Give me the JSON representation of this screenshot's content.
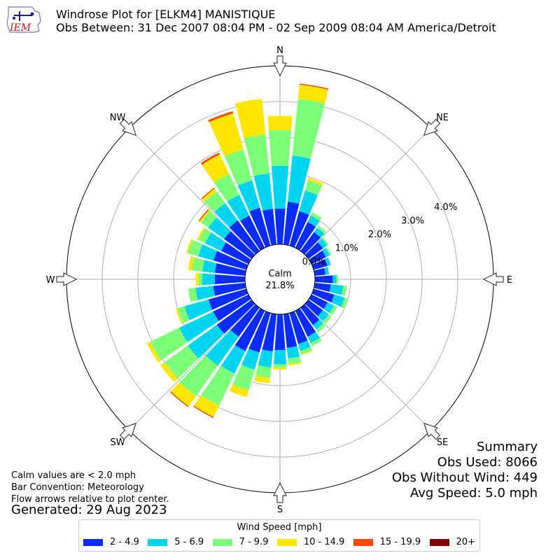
{
  "logo": {
    "text": "IEM"
  },
  "title": "Windrose Plot for [ELKM4] MANISTIQUE",
  "subtitle": "Obs Between: 31 Dec 2007 08:04 PM - 02 Sep 2009 08:04 AM America/Detroit",
  "notes": {
    "calm": "Calm values are < 2.0 mph",
    "bar": "Bar Convention: Meteorology",
    "flow": "Flow arrows relative to plot center.",
    "generated": "Generated: 29 Aug 2023"
  },
  "summary": {
    "title": "Summary",
    "obs_used": "Obs Used: 8066",
    "obs_without_wind": "Obs Without Wind: 449",
    "avg_speed": "Avg Speed: 5.0 mph"
  },
  "legend": {
    "title": "Wind Speed [mph]",
    "items": [
      {
        "label": "2 - 4.9",
        "color": "#0a2cf5"
      },
      {
        "label": "5 - 6.9",
        "color": "#00d5f0"
      },
      {
        "label": "7 - 9.9",
        "color": "#7dff7a"
      },
      {
        "label": "10 - 14.9",
        "color": "#ffe600"
      },
      {
        "label": "15 - 19.9",
        "color": "#ff4a0a"
      },
      {
        "label": "20+",
        "color": "#800000"
      }
    ]
  },
  "chart_data": {
    "type": "windrose",
    "calm_label": "Calm",
    "calm_value": "21.8%",
    "radial_ticks": [
      0,
      1,
      2,
      3,
      4
    ],
    "radial_tick_labels": [
      "0.0%",
      "1.0%",
      "2.0%",
      "3.0%",
      "4.0%"
    ],
    "directions": [
      "N",
      "NE",
      "E",
      "SE",
      "S",
      "SW",
      "W",
      "NW"
    ],
    "bin_labels": [
      "2 - 4.9",
      "5 - 6.9",
      "7 - 9.9",
      "10 - 14.9",
      "15 - 19.9",
      "20+"
    ],
    "bin_colors": [
      "#0a2cf5",
      "#00d5f0",
      "#7dff7a",
      "#ffe600",
      "#ff4a0a",
      "#800000"
    ],
    "sectors": [
      {
        "dir": 0,
        "values": [
          1.0,
          1.2,
          1.0,
          0.4,
          0.0,
          0.0
        ]
      },
      {
        "dir": 10,
        "values": [
          1.2,
          1.3,
          1.6,
          0.4,
          0.03,
          0.0
        ]
      },
      {
        "dir": 20,
        "values": [
          1.0,
          0.6,
          0.3,
          0.07,
          0.0,
          0.0
        ]
      },
      {
        "dir": 30,
        "values": [
          0.8,
          0.2,
          0.1,
          0.0,
          0.0,
          0.0
        ]
      },
      {
        "dir": 40,
        "values": [
          0.65,
          0.15,
          0.08,
          0.0,
          0.0,
          0.0
        ]
      },
      {
        "dir": 50,
        "values": [
          0.5,
          0.15,
          0.05,
          0.0,
          0.0,
          0.0
        ]
      },
      {
        "dir": 60,
        "values": [
          0.45,
          0.12,
          0.05,
          0.0,
          0.0,
          0.0
        ]
      },
      {
        "dir": 70,
        "values": [
          0.4,
          0.1,
          0.0,
          0.0,
          0.0,
          0.0
        ]
      },
      {
        "dir": 80,
        "values": [
          0.3,
          0.1,
          0.0,
          0.0,
          0.0,
          0.0
        ]
      },
      {
        "dir": 90,
        "values": [
          0.5,
          0.1,
          0.05,
          0.0,
          0.0,
          0.0
        ]
      },
      {
        "dir": 100,
        "values": [
          0.45,
          0.35,
          0.1,
          0.0,
          0.0,
          0.0
        ]
      },
      {
        "dir": 110,
        "values": [
          0.6,
          0.3,
          0.1,
          0.0,
          0.0,
          0.0
        ]
      },
      {
        "dir": 120,
        "values": [
          0.5,
          0.2,
          0.1,
          0.0,
          0.0,
          0.0
        ]
      },
      {
        "dir": 130,
        "values": [
          0.5,
          0.2,
          0.1,
          0.0,
          0.0,
          0.0
        ]
      },
      {
        "dir": 140,
        "values": [
          0.6,
          0.15,
          0.1,
          0.0,
          0.0,
          0.0
        ]
      },
      {
        "dir": 150,
        "values": [
          0.8,
          0.2,
          0.1,
          0.0,
          0.0,
          0.0
        ]
      },
      {
        "dir": 160,
        "values": [
          0.9,
          0.2,
          0.1,
          0.03,
          0.0,
          0.0
        ]
      },
      {
        "dir": 170,
        "values": [
          0.95,
          0.3,
          0.15,
          0.05,
          0.0,
          0.0
        ]
      },
      {
        "dir": 180,
        "values": [
          1.0,
          0.4,
          0.1,
          0.05,
          0.0,
          0.0
        ]
      },
      {
        "dir": 190,
        "values": [
          1.05,
          0.45,
          0.3,
          0.15,
          0.0,
          0.0
        ]
      },
      {
        "dir": 200,
        "values": [
          1.15,
          0.5,
          0.6,
          0.2,
          0.0,
          0.0
        ]
      },
      {
        "dir": 210,
        "values": [
          1.25,
          0.7,
          1.0,
          0.35,
          0.03,
          0.0
        ]
      },
      {
        "dir": 220,
        "values": [
          1.0,
          1.0,
          1.05,
          0.35,
          0.03,
          0.0
        ]
      },
      {
        "dir": 230,
        "values": [
          1.2,
          1.0,
          0.8,
          0.15,
          0.0,
          0.0
        ]
      },
      {
        "dir": 240,
        "values": [
          1.1,
          1.05,
          0.9,
          0.1,
          0.0,
          0.0
        ]
      },
      {
        "dir": 250,
        "values": [
          1.1,
          0.7,
          0.2,
          0.05,
          0.0,
          0.0
        ]
      },
      {
        "dir": 260,
        "values": [
          0.9,
          0.5,
          0.2,
          0.0,
          0.0,
          0.0
        ]
      },
      {
        "dir": 270,
        "values": [
          0.85,
          0.35,
          0.1,
          0.08,
          0.0,
          0.0
        ]
      },
      {
        "dir": 280,
        "values": [
          0.85,
          0.35,
          0.3,
          0.1,
          0.0,
          0.0
        ]
      },
      {
        "dir": 290,
        "values": [
          0.95,
          0.45,
          0.3,
          0.05,
          0.0,
          0.0
        ]
      },
      {
        "dir": 300,
        "values": [
          0.85,
          0.5,
          0.2,
          0.05,
          0.0,
          0.0
        ]
      },
      {
        "dir": 310,
        "values": [
          0.95,
          0.55,
          0.25,
          0.05,
          0.03,
          0.0
        ]
      },
      {
        "dir": 320,
        "values": [
          1.05,
          0.6,
          0.4,
          0.1,
          0.03,
          0.0
        ]
      },
      {
        "dir": 330,
        "values": [
          1.0,
          0.65,
          0.65,
          0.6,
          0.06,
          0.0
        ]
      },
      {
        "dir": 340,
        "values": [
          1.1,
          0.8,
          0.9,
          1.05,
          0.06,
          0.0
        ]
      },
      {
        "dir": 350,
        "values": [
          1.0,
          1.0,
          1.1,
          1.0,
          0.0,
          0.0
        ]
      }
    ]
  }
}
